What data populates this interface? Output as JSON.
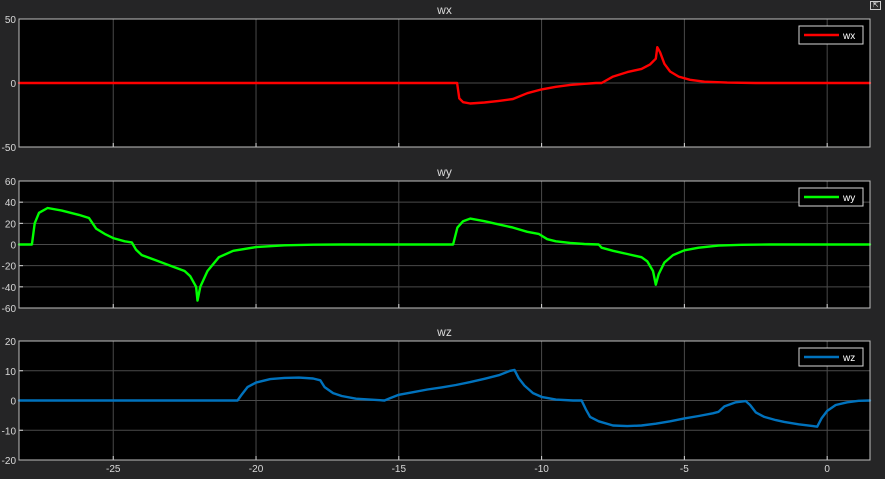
{
  "restore_button_glyph": "⇱",
  "colors": {
    "background": "#252526",
    "axes_background": "#000000",
    "grid": "#4a4a4a",
    "text": "#d9d9d9"
  },
  "chart_data": [
    {
      "type": "line",
      "title": "wx",
      "xlim": [
        -28.3,
        1.5
      ],
      "ylim": [
        -50,
        50
      ],
      "yticks": [
        -50,
        0,
        50
      ],
      "xticks": [
        -25,
        -20,
        -15,
        -10,
        -5,
        0
      ],
      "show_xtick_labels": false,
      "grid": true,
      "legend_position": "top-right",
      "series": [
        {
          "name": "wx",
          "color": "#ff0000",
          "points": [
            [
              -28.3,
              0
            ],
            [
              -12.96,
              0
            ],
            [
              -12.88,
              -12
            ],
            [
              -12.75,
              -15
            ],
            [
              -12.5,
              -16
            ],
            [
              -12.0,
              -15.2
            ],
            [
              -11.5,
              -14
            ],
            [
              -11.0,
              -12.5
            ],
            [
              -10.5,
              -8
            ],
            [
              -10.0,
              -5
            ],
            [
              -9.5,
              -3
            ],
            [
              -9.0,
              -1.5
            ],
            [
              -8.5,
              -0.6
            ],
            [
              -8.1,
              0
            ],
            [
              -7.9,
              0
            ],
            [
              -7.5,
              5
            ],
            [
              -7.0,
              8.5
            ],
            [
              -6.5,
              11
            ],
            [
              -6.2,
              14.5
            ],
            [
              -6.0,
              19
            ],
            [
              -5.95,
              28
            ],
            [
              -5.85,
              24
            ],
            [
              -5.7,
              15
            ],
            [
              -5.5,
              9
            ],
            [
              -5.2,
              5
            ],
            [
              -4.8,
              2.5
            ],
            [
              -4.3,
              1
            ],
            [
              -3.5,
              0.3
            ],
            [
              -2.5,
              0
            ],
            [
              1.5,
              0
            ]
          ]
        }
      ]
    },
    {
      "type": "line",
      "title": "wy",
      "xlim": [
        -28.3,
        1.5
      ],
      "ylim": [
        -60,
        60
      ],
      "yticks": [
        -60,
        -40,
        -20,
        0,
        20,
        40,
        60
      ],
      "xticks": [
        -25,
        -20,
        -15,
        -10,
        -5,
        0
      ],
      "show_xtick_labels": false,
      "grid": true,
      "legend_position": "top-right",
      "series": [
        {
          "name": "wy",
          "color": "#00ff00",
          "points": [
            [
              -28.3,
              0
            ],
            [
              -27.85,
              0
            ],
            [
              -27.75,
              20
            ],
            [
              -27.6,
              30
            ],
            [
              -27.3,
              34.5
            ],
            [
              -26.8,
              32
            ],
            [
              -26.2,
              28
            ],
            [
              -25.85,
              25
            ],
            [
              -25.6,
              15
            ],
            [
              -25.3,
              10
            ],
            [
              -25.0,
              6
            ],
            [
              -24.6,
              3
            ],
            [
              -24.35,
              2
            ],
            [
              -24.2,
              -5
            ],
            [
              -24.0,
              -10
            ],
            [
              -23.5,
              -15
            ],
            [
              -23.0,
              -20
            ],
            [
              -22.5,
              -25
            ],
            [
              -22.3,
              -30
            ],
            [
              -22.1,
              -40
            ],
            [
              -22.05,
              -53
            ],
            [
              -21.95,
              -40
            ],
            [
              -21.7,
              -25
            ],
            [
              -21.3,
              -12
            ],
            [
              -20.8,
              -6
            ],
            [
              -20.0,
              -2.5
            ],
            [
              -19.0,
              -0.8
            ],
            [
              -18.0,
              -0.2
            ],
            [
              -17.0,
              0
            ],
            [
              -13.1,
              0
            ],
            [
              -12.95,
              16
            ],
            [
              -12.75,
              22
            ],
            [
              -12.5,
              24.5
            ],
            [
              -12.0,
              22
            ],
            [
              -11.5,
              19
            ],
            [
              -11.0,
              16
            ],
            [
              -10.5,
              12
            ],
            [
              -10.1,
              10
            ],
            [
              -9.8,
              5
            ],
            [
              -9.5,
              3
            ],
            [
              -9.0,
              1.5
            ],
            [
              -8.5,
              0.5
            ],
            [
              -8.0,
              0
            ],
            [
              -7.9,
              -3
            ],
            [
              -7.5,
              -6
            ],
            [
              -7.0,
              -9
            ],
            [
              -6.5,
              -12
            ],
            [
              -6.3,
              -16
            ],
            [
              -6.1,
              -25
            ],
            [
              -6.0,
              -38
            ],
            [
              -5.9,
              -28
            ],
            [
              -5.7,
              -17
            ],
            [
              -5.4,
              -10
            ],
            [
              -5.0,
              -5.5
            ],
            [
              -4.5,
              -3
            ],
            [
              -3.8,
              -1
            ],
            [
              -3.0,
              -0.3
            ],
            [
              -2.0,
              0
            ],
            [
              1.5,
              0
            ]
          ]
        }
      ]
    },
    {
      "type": "line",
      "title": "wz",
      "xlim": [
        -28.3,
        1.5
      ],
      "ylim": [
        -20,
        20
      ],
      "yticks": [
        -20,
        -10,
        0,
        10,
        20
      ],
      "xticks": [
        -25,
        -20,
        -15,
        -10,
        -5,
        0
      ],
      "show_xtick_labels": true,
      "grid": true,
      "legend_position": "top-right",
      "series": [
        {
          "name": "wz",
          "color": "#0072bd",
          "points": [
            [
              -28.3,
              0
            ],
            [
              -20.65,
              0
            ],
            [
              -20.5,
              2
            ],
            [
              -20.3,
              4.5
            ],
            [
              -20.0,
              6
            ],
            [
              -19.5,
              7.2
            ],
            [
              -19.0,
              7.6
            ],
            [
              -18.5,
              7.7
            ],
            [
              -18.0,
              7.4
            ],
            [
              -17.75,
              6.8
            ],
            [
              -17.6,
              4.5
            ],
            [
              -17.3,
              2.5
            ],
            [
              -17.0,
              1.5
            ],
            [
              -16.5,
              0.6
            ],
            [
              -15.5,
              0
            ],
            [
              -15.3,
              0.8
            ],
            [
              -15.0,
              1.9
            ],
            [
              -14.5,
              2.8
            ],
            [
              -14.0,
              3.7
            ],
            [
              -13.5,
              4.4
            ],
            [
              -13.0,
              5.2
            ],
            [
              -12.5,
              6.2
            ],
            [
              -12.0,
              7.3
            ],
            [
              -11.5,
              8.5
            ],
            [
              -11.1,
              10
            ],
            [
              -10.95,
              10.3
            ],
            [
              -10.8,
              7.5
            ],
            [
              -10.6,
              5
            ],
            [
              -10.3,
              2.5
            ],
            [
              -10.0,
              1.2
            ],
            [
              -9.5,
              0.3
            ],
            [
              -8.9,
              0
            ],
            [
              -8.6,
              0
            ],
            [
              -8.45,
              -3
            ],
            [
              -8.3,
              -5.5
            ],
            [
              -8.0,
              -7
            ],
            [
              -7.5,
              -8.4
            ],
            [
              -7.0,
              -8.6
            ],
            [
              -6.5,
              -8.4
            ],
            [
              -6.0,
              -7.8
            ],
            [
              -5.5,
              -7
            ],
            [
              -5.0,
              -6
            ],
            [
              -4.5,
              -5.2
            ],
            [
              -4.0,
              -4.3
            ],
            [
              -3.8,
              -3.8
            ],
            [
              -3.6,
              -2
            ],
            [
              -3.2,
              -0.6
            ],
            [
              -2.85,
              -0.2
            ],
            [
              -2.7,
              -1.5
            ],
            [
              -2.5,
              -4
            ],
            [
              -2.2,
              -5.5
            ],
            [
              -1.8,
              -6.6
            ],
            [
              -1.5,
              -7.2
            ],
            [
              -1.0,
              -8
            ],
            [
              -0.5,
              -8.6
            ],
            [
              -0.35,
              -8.8
            ],
            [
              -0.2,
              -6
            ],
            [
              0.0,
              -3.5
            ],
            [
              0.3,
              -1.5
            ],
            [
              0.7,
              -0.6
            ],
            [
              1.1,
              -0.1
            ],
            [
              1.5,
              0
            ]
          ]
        }
      ]
    }
  ]
}
